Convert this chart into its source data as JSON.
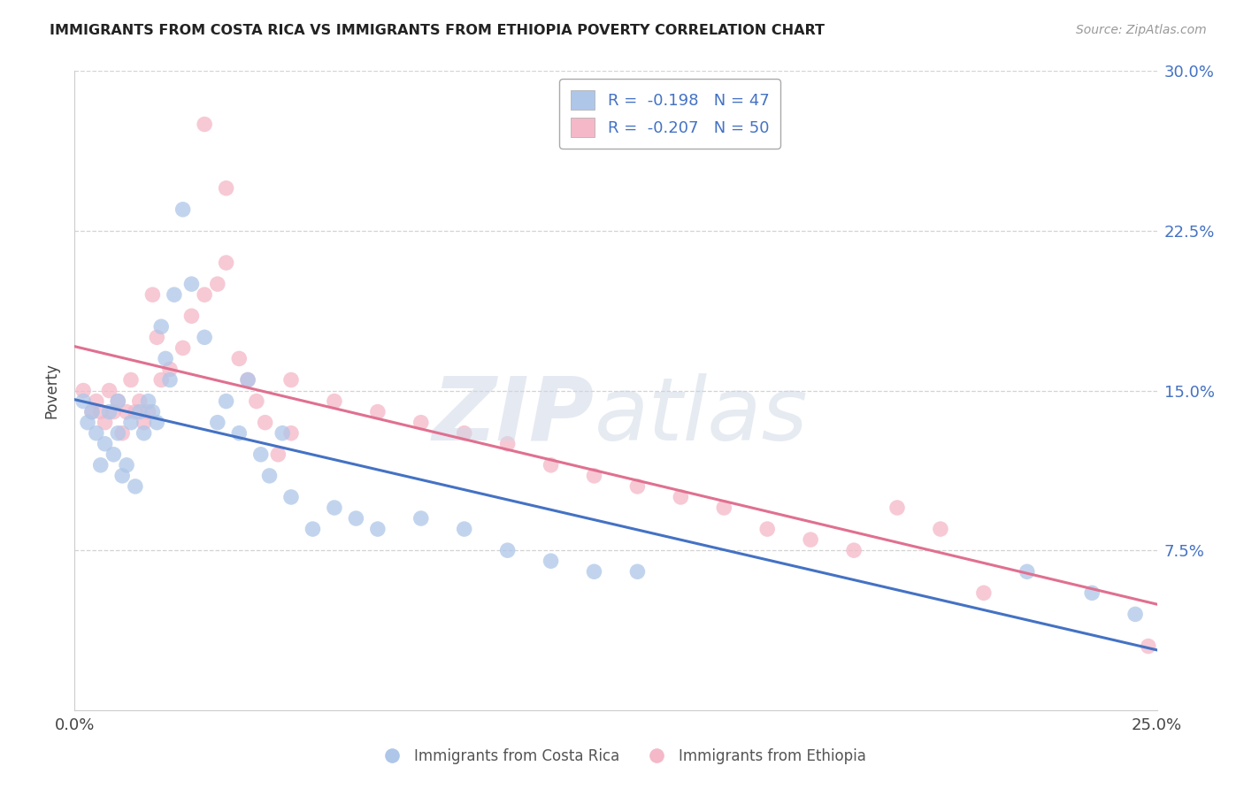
{
  "title": "IMMIGRANTS FROM COSTA RICA VS IMMIGRANTS FROM ETHIOPIA POVERTY CORRELATION CHART",
  "source": "Source: ZipAtlas.com",
  "xlabel_ticks": [
    "0.0%",
    "25.0%"
  ],
  "ylabel_ticks_right": [
    "7.5%",
    "15.0%",
    "22.5%",
    "30.0%"
  ],
  "xlim": [
    0.0,
    0.25
  ],
  "ylim": [
    0.0,
    0.3
  ],
  "ytick_vals": [
    0.075,
    0.15,
    0.225,
    0.3
  ],
  "xtick_vals": [
    0.0,
    0.25
  ],
  "legend_blue_label": "R =  -0.198   N = 47",
  "legend_pink_label": "R =  -0.207   N = 50",
  "legend_blue_color": "#aec6e8",
  "legend_pink_color": "#f4b8c8",
  "scatter_blue_color": "#aec6e8",
  "scatter_pink_color": "#f4b8c8",
  "line_blue_color": "#4472c4",
  "line_pink_color": "#e07090",
  "footer_blue": "Immigrants from Costa Rica",
  "footer_pink": "Immigrants from Ethiopia",
  "background_color": "#ffffff",
  "grid_color": "#c8c8c8",
  "costa_rica_x": [
    0.002,
    0.003,
    0.004,
    0.005,
    0.006,
    0.007,
    0.008,
    0.009,
    0.01,
    0.01,
    0.011,
    0.012,
    0.013,
    0.014,
    0.015,
    0.016,
    0.017,
    0.018,
    0.019,
    0.02,
    0.021,
    0.022,
    0.023,
    0.025,
    0.027,
    0.03,
    0.033,
    0.035,
    0.038,
    0.04,
    0.043,
    0.045,
    0.048,
    0.05,
    0.055,
    0.06,
    0.065,
    0.07,
    0.08,
    0.09,
    0.1,
    0.11,
    0.12,
    0.13,
    0.22,
    0.235,
    0.245
  ],
  "costa_rica_y": [
    0.145,
    0.135,
    0.14,
    0.13,
    0.115,
    0.125,
    0.14,
    0.12,
    0.13,
    0.145,
    0.11,
    0.115,
    0.135,
    0.105,
    0.14,
    0.13,
    0.145,
    0.14,
    0.135,
    0.18,
    0.165,
    0.155,
    0.195,
    0.235,
    0.2,
    0.175,
    0.135,
    0.145,
    0.13,
    0.155,
    0.12,
    0.11,
    0.13,
    0.1,
    0.085,
    0.095,
    0.09,
    0.085,
    0.09,
    0.085,
    0.075,
    0.07,
    0.065,
    0.065,
    0.065,
    0.055,
    0.045
  ],
  "ethiopia_x": [
    0.002,
    0.004,
    0.005,
    0.006,
    0.007,
    0.008,
    0.009,
    0.01,
    0.011,
    0.012,
    0.013,
    0.014,
    0.015,
    0.016,
    0.017,
    0.018,
    0.019,
    0.02,
    0.022,
    0.025,
    0.027,
    0.03,
    0.033,
    0.035,
    0.038,
    0.04,
    0.042,
    0.044,
    0.047,
    0.05,
    0.03,
    0.035,
    0.05,
    0.06,
    0.07,
    0.08,
    0.09,
    0.1,
    0.11,
    0.12,
    0.13,
    0.14,
    0.15,
    0.16,
    0.17,
    0.18,
    0.19,
    0.2,
    0.21,
    0.248
  ],
  "ethiopia_y": [
    0.15,
    0.14,
    0.145,
    0.14,
    0.135,
    0.15,
    0.14,
    0.145,
    0.13,
    0.14,
    0.155,
    0.14,
    0.145,
    0.135,
    0.14,
    0.195,
    0.175,
    0.155,
    0.16,
    0.17,
    0.185,
    0.195,
    0.2,
    0.21,
    0.165,
    0.155,
    0.145,
    0.135,
    0.12,
    0.13,
    0.275,
    0.245,
    0.155,
    0.145,
    0.14,
    0.135,
    0.13,
    0.125,
    0.115,
    0.11,
    0.105,
    0.1,
    0.095,
    0.085,
    0.08,
    0.075,
    0.095,
    0.085,
    0.055,
    0.03
  ]
}
